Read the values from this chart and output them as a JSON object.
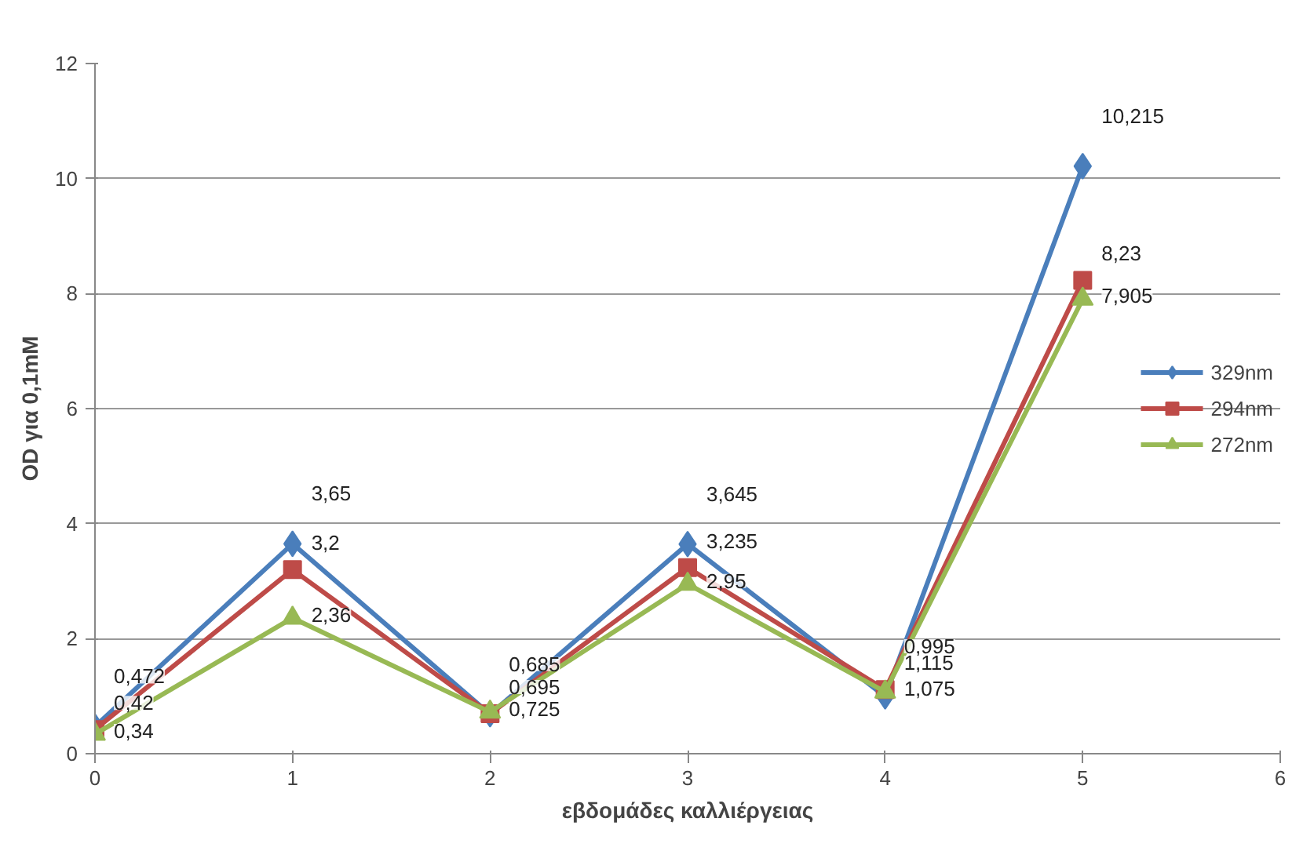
{
  "chart_data": {
    "type": "line",
    "xlabel": "εβδομάδες καλλιέργειας",
    "ylabel": "OD για 0,1mM",
    "x": [
      0,
      1,
      2,
      3,
      4,
      5
    ],
    "xlim": [
      0,
      6
    ],
    "xticks": [
      0,
      1,
      2,
      3,
      4,
      5,
      6
    ],
    "ylim": [
      0,
      12
    ],
    "yticks": [
      0,
      2,
      4,
      6,
      8,
      10,
      12
    ],
    "grid": "y",
    "legend": "right",
    "line_style": "solid",
    "series": [
      {
        "name": "329nm",
        "color": "#4a7ebb",
        "marker": "diamond",
        "values": [
          0.472,
          3.65,
          0.685,
          3.645,
          0.995,
          10.215
        ],
        "value_labels": [
          "0,472",
          "3,65",
          "0,685",
          "3,645",
          "0,995",
          "10,215"
        ]
      },
      {
        "name": "294nm",
        "color": "#be4b48",
        "marker": "square",
        "values": [
          0.42,
          3.2,
          0.695,
          3.235,
          1.115,
          8.23
        ],
        "value_labels": [
          "0,42",
          "3,2",
          "0,695",
          "3,235",
          "1,115",
          "8,23"
        ]
      },
      {
        "name": "272nm",
        "color": "#98b954",
        "marker": "triangle",
        "values": [
          0.34,
          2.36,
          0.725,
          2.95,
          1.075,
          7.905
        ],
        "value_labels": [
          "0,34",
          "2,36",
          "0,725",
          "2,95",
          "1,075",
          "7,905"
        ]
      }
    ]
  }
}
